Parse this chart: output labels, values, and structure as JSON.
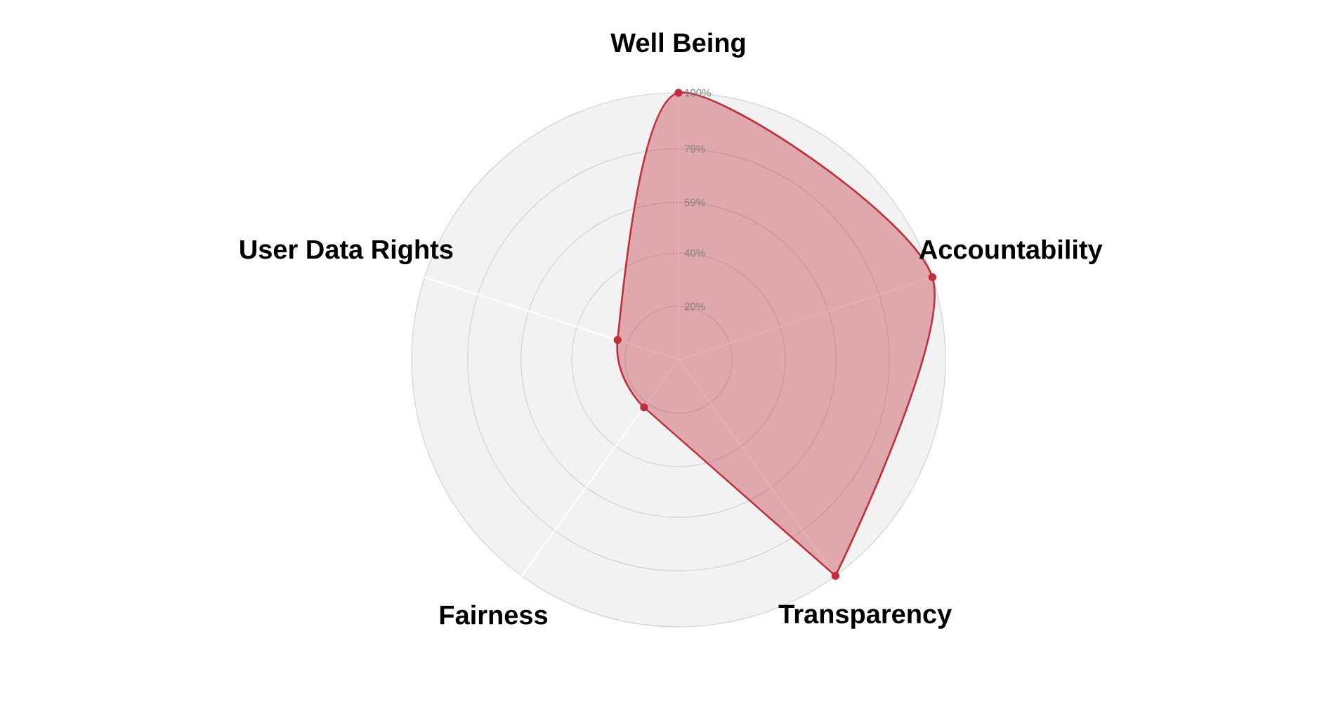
{
  "chart_data": {
    "type": "radar",
    "categories": [
      "Well Being",
      "Accountability",
      "Transparency",
      "Fairness",
      "User Data Rights"
    ],
    "series": [
      {
        "color": "#c0303c",
        "values": [
          100,
          100,
          100,
          22,
          24
        ]
      }
    ],
    "ylim": [
      0,
      100
    ],
    "yticks": [
      {
        "value": 20,
        "label": "20%"
      },
      {
        "value": 40,
        "label": "40%"
      },
      {
        "value": 59,
        "label": "59%"
      },
      {
        "value": 79,
        "label": "79%"
      },
      {
        "value": 100,
        "label": "100%"
      }
    ],
    "grid": true,
    "marker": "circle"
  }
}
